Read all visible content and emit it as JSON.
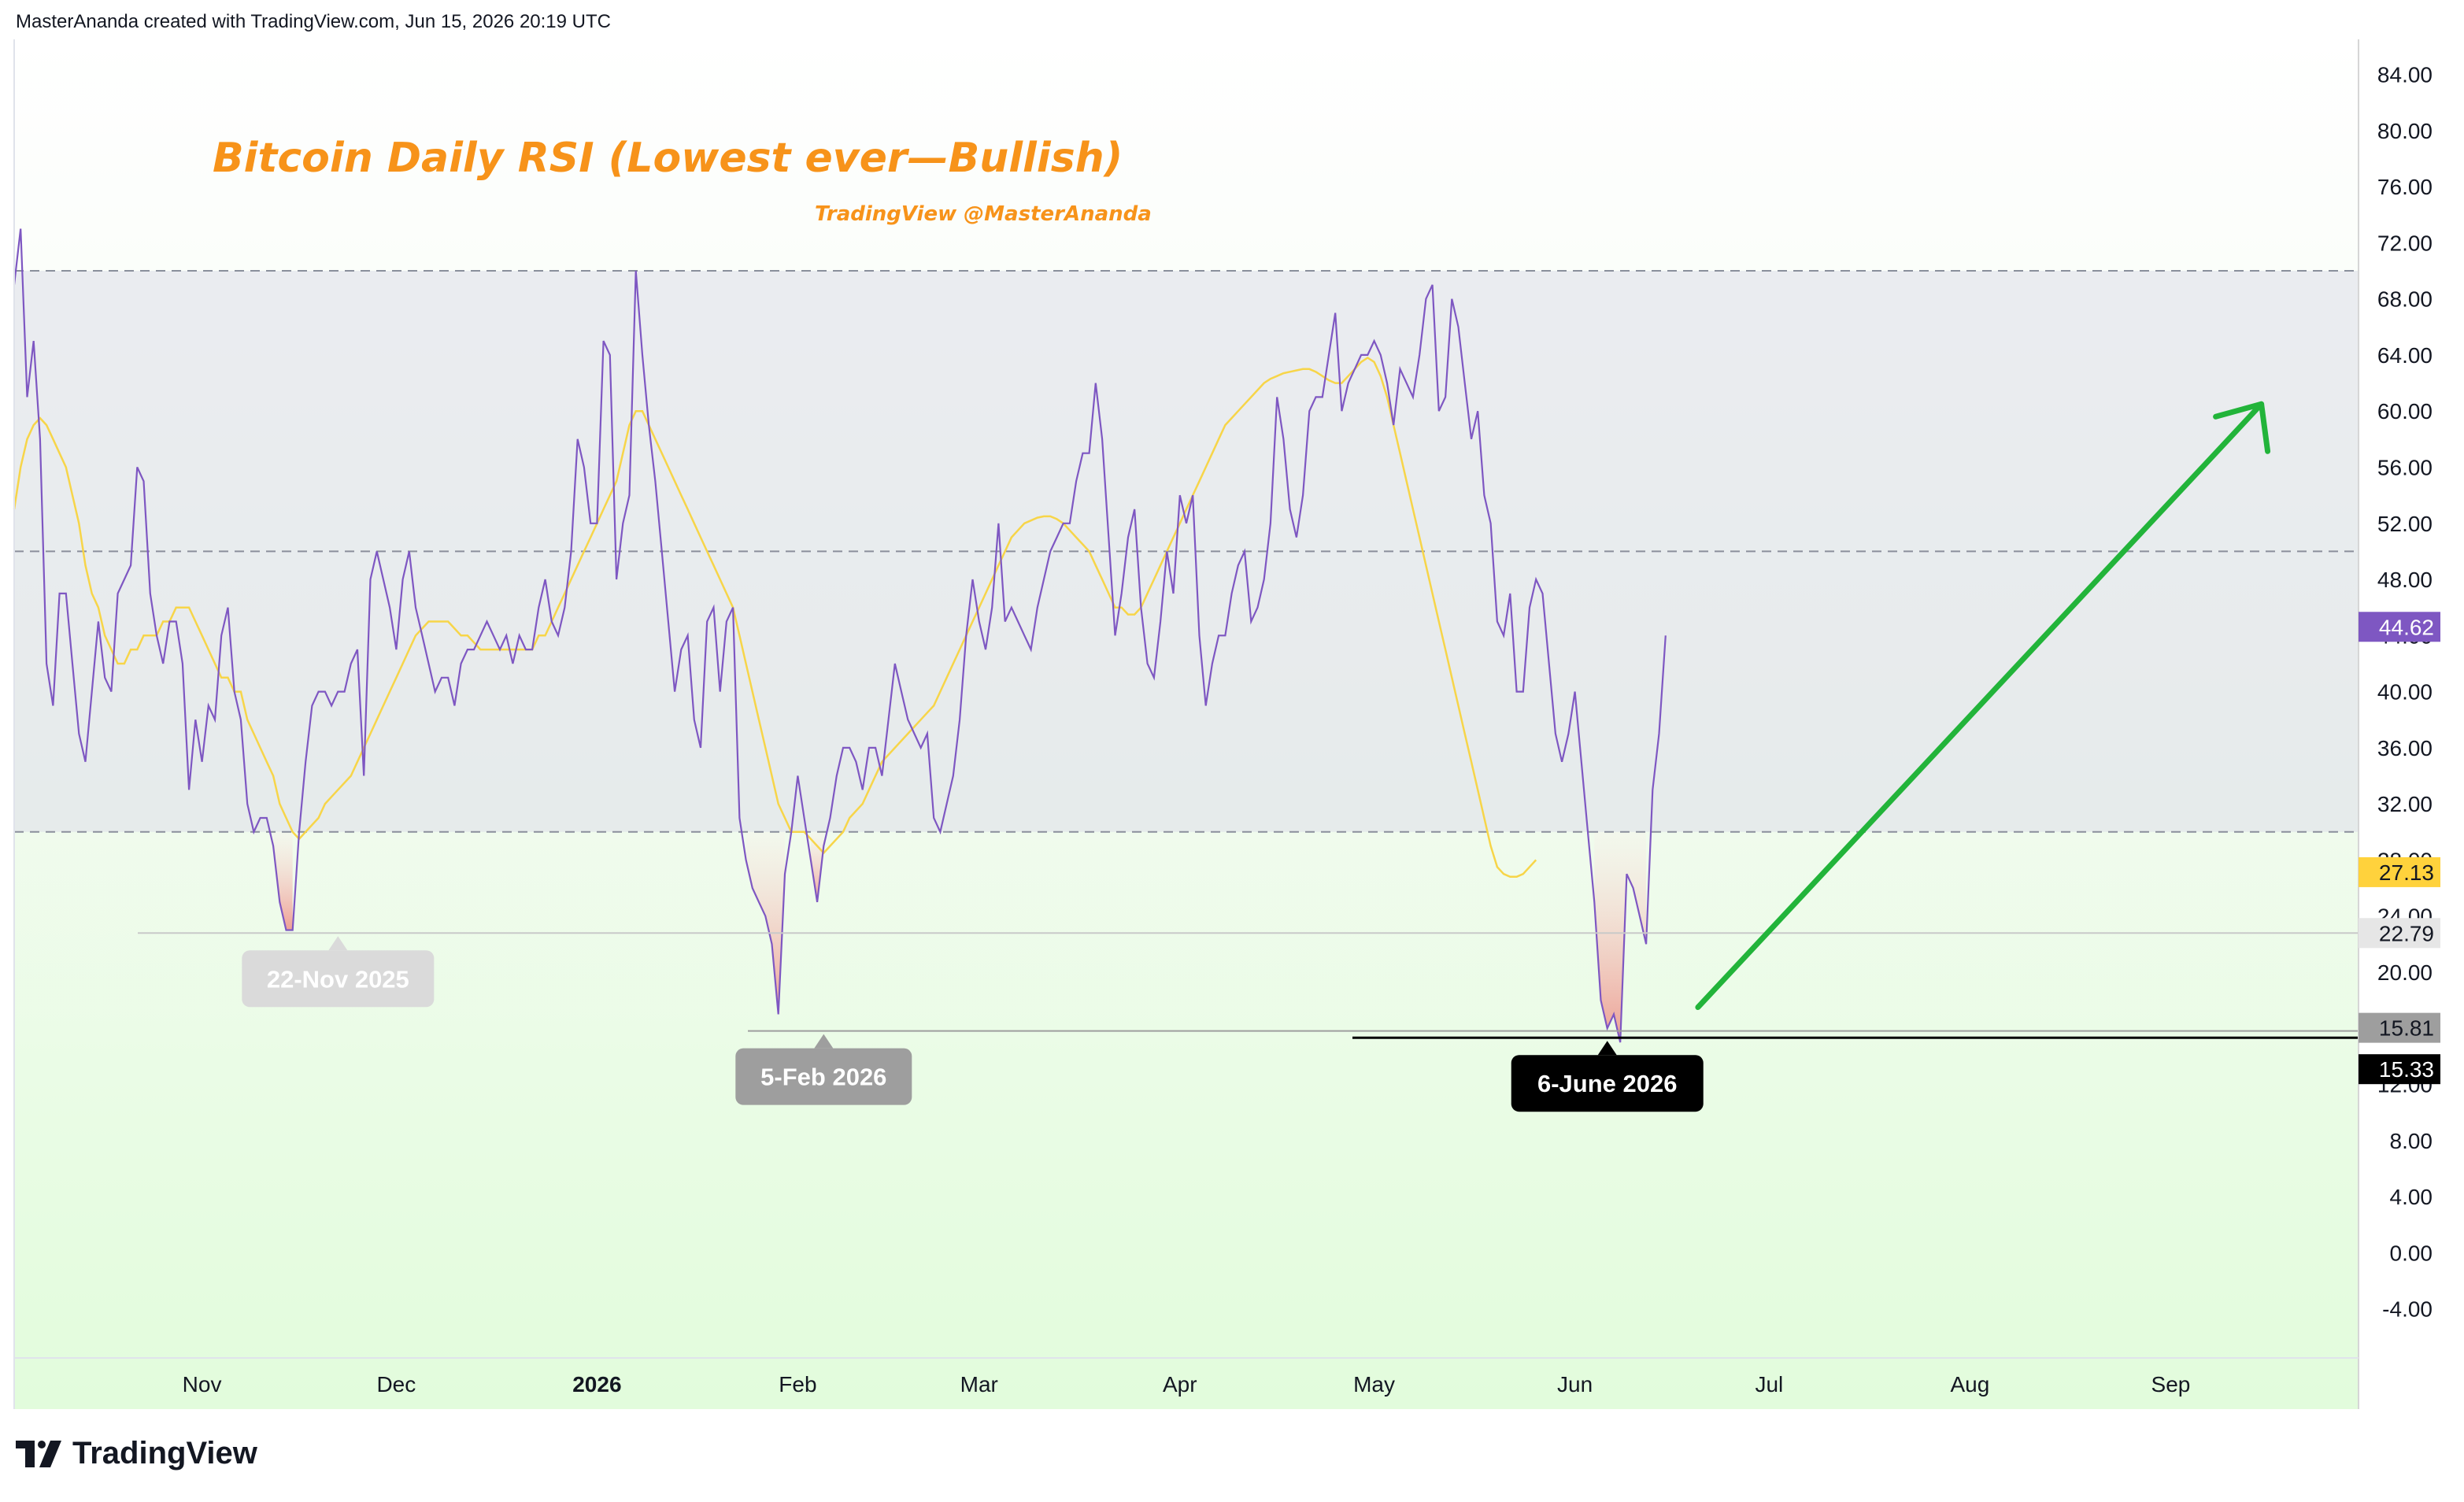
{
  "header": {
    "text": "MasterAnanda created with TradingView.com, Jun 15, 2026 20:19 UTC"
  },
  "brand": {
    "name": "TradingView"
  },
  "colors": {
    "rsi": "#7e57c2",
    "rsi_ma": "#f7d549",
    "title": "#f7931a",
    "arrow": "#22b43a",
    "band": "#dfe1ea",
    "green_zone": "#e3ffde",
    "label_nov": "#dadada",
    "label_feb": "#9e9e9e",
    "label_jun": "#000000",
    "price_current": "#7e57c2",
    "price_ma": "#ffd23c"
  },
  "chart_data": {
    "type": "line",
    "title": "Bitcoin Daily RSI (Lowest ever—Bullish)",
    "subtitle": "TradingView @MasterAnanda",
    "ylim": [
      -7.5,
      86.5
    ],
    "y_ticks": [
      "84.00",
      "80.00",
      "76.00",
      "72.00",
      "68.00",
      "64.00",
      "60.00",
      "56.00",
      "52.00",
      "48.00",
      "44.00",
      "40.00",
      "36.00",
      "32.00",
      "28.00",
      "24.00",
      "20.00",
      "16.00",
      "12.00",
      "8.00",
      "4.00",
      "0.00",
      "-4.00"
    ],
    "x_ticks": [
      {
        "label": "Nov",
        "bold": false
      },
      {
        "label": "Dec",
        "bold": false
      },
      {
        "label": "2026",
        "bold": true
      },
      {
        "label": "Feb",
        "bold": false
      },
      {
        "label": "Mar",
        "bold": false
      },
      {
        "label": "Apr",
        "bold": false
      },
      {
        "label": "May",
        "bold": false
      },
      {
        "label": "Jun",
        "bold": false
      },
      {
        "label": "Jul",
        "bold": false
      },
      {
        "label": "Aug",
        "bold": false
      },
      {
        "label": "Sep",
        "bold": false
      }
    ],
    "band": {
      "upper": 70,
      "middle": 50,
      "lower": 30
    },
    "series": [
      {
        "role": "rsi",
        "start_date": "2025-10-03",
        "values": [
          69,
          73,
          61,
          65,
          58,
          42,
          39,
          47,
          47,
          42,
          37,
          35,
          40,
          45,
          41,
          40,
          47,
          48,
          49,
          56,
          55,
          47,
          44,
          42,
          45,
          45,
          42,
          33,
          38,
          35,
          39,
          38,
          44,
          46,
          40,
          38,
          32,
          30,
          31,
          31,
          29,
          25,
          23,
          23,
          30,
          35,
          39,
          40,
          40,
          39,
          40,
          40,
          42,
          43,
          34,
          48,
          50,
          48,
          46,
          43,
          48,
          50,
          46,
          44,
          42,
          40,
          41,
          41,
          39,
          42,
          43,
          43,
          44,
          45,
          44,
          43,
          44,
          42,
          44,
          43,
          43,
          46,
          48,
          45,
          44,
          46,
          50,
          58,
          56,
          52,
          52,
          65,
          64,
          48,
          52,
          54,
          70,
          64,
          59,
          55,
          50,
          45,
          40,
          43,
          44,
          38,
          36,
          45,
          46,
          40,
          45,
          46,
          31,
          28,
          26,
          25,
          24,
          22,
          17,
          27,
          30,
          34,
          31,
          28,
          25,
          29,
          31,
          34,
          36,
          36,
          35,
          33,
          36,
          36,
          34,
          38,
          42,
          40,
          38,
          37,
          36,
          37,
          31,
          30,
          32,
          34,
          38,
          44,
          48,
          45,
          43,
          46,
          52,
          45,
          46,
          45,
          44,
          43,
          46,
          48,
          50,
          51,
          52,
          52,
          55,
          57,
          57,
          62,
          58,
          51,
          44,
          47,
          51,
          53,
          46,
          42,
          41,
          45,
          50,
          47,
          54,
          52,
          54,
          44,
          39,
          42,
          44,
          44,
          47,
          49,
          50,
          45,
          46,
          48,
          52,
          61,
          58,
          53,
          51,
          54,
          60,
          61,
          61,
          64,
          67,
          60,
          62,
          63,
          64,
          64,
          65,
          64,
          62,
          59,
          63,
          62,
          61,
          64,
          68,
          69,
          60,
          61,
          68,
          66,
          62,
          58,
          60,
          54,
          52,
          45,
          44,
          47,
          40,
          40,
          46,
          48,
          47,
          42,
          37,
          35,
          37,
          40,
          35,
          30,
          25,
          18,
          16,
          17,
          15,
          27,
          26,
          24,
          22,
          33,
          37,
          44
        ]
      },
      {
        "role": "rsi_ma",
        "start_date": "2025-10-03",
        "values": [
          53,
          56,
          58,
          59,
          59.5,
          59,
          58,
          57,
          56,
          54,
          52,
          49,
          47,
          46,
          44,
          43,
          42,
          42,
          43,
          43,
          44,
          44,
          44,
          45,
          45,
          46,
          46,
          46,
          45,
          44,
          43,
          42,
          41,
          41,
          40,
          40,
          38,
          37,
          36,
          35,
          34,
          32,
          31,
          30,
          29.5,
          30,
          30.5,
          31,
          32,
          32.5,
          33,
          33.5,
          34,
          35,
          36,
          37,
          38,
          39,
          40,
          41,
          42,
          43,
          44,
          44.5,
          45,
          45,
          45,
          45,
          44.5,
          44,
          44,
          43.5,
          43,
          43,
          43,
          43,
          43,
          43,
          43,
          43,
          43,
          44,
          44,
          45,
          46,
          47,
          48,
          49,
          50,
          51,
          52,
          53,
          54,
          55,
          57,
          59,
          60,
          60,
          59,
          58,
          57,
          56,
          55,
          54,
          53,
          52,
          51,
          50,
          49,
          48,
          47,
          46,
          44,
          42,
          40,
          38,
          36,
          34,
          32,
          31,
          30,
          30,
          30,
          29.5,
          29,
          28.5,
          29,
          29.5,
          30,
          31,
          31.5,
          32,
          33,
          34,
          35,
          35.5,
          36,
          36.5,
          37,
          37.5,
          38,
          38.5,
          39,
          40,
          41,
          42,
          43,
          44,
          45,
          46,
          47,
          48,
          49,
          50,
          51,
          51.5,
          52,
          52.2,
          52.4,
          52.5,
          52.5,
          52.3,
          52,
          51.5,
          51,
          50.5,
          50,
          49,
          48,
          47,
          46,
          46,
          45.5,
          45.5,
          46,
          47,
          48,
          49,
          50,
          51,
          52,
          53,
          54,
          55,
          56,
          57,
          58,
          59,
          59.5,
          60,
          60.5,
          61,
          61.5,
          62,
          62.3,
          62.5,
          62.7,
          62.8,
          62.9,
          63,
          63,
          62.8,
          62.5,
          62.2,
          62,
          62,
          62.5,
          63,
          63.5,
          63.8,
          63.5,
          62.5,
          61,
          59,
          57,
          55,
          53,
          51,
          49,
          47,
          45,
          43,
          41,
          39,
          37,
          35,
          33,
          31,
          29,
          27.5,
          27,
          26.8,
          26.8,
          27,
          27.5,
          28
        ]
      }
    ],
    "annotations": [
      {
        "label": "22-Nov 2025",
        "date": "2025-11-22",
        "value": 22.79
      },
      {
        "label": "5-Feb 2026",
        "date": "2026-02-05",
        "value": 15.81
      },
      {
        "label": "6-June 2026",
        "date": "2026-06-06",
        "value": 15.33
      }
    ],
    "arrow": {
      "from": {
        "date": "2026-06-20",
        "value": 17.5
      },
      "to": {
        "date": "2026-09-15",
        "value": 60.5
      }
    },
    "price_labels": [
      {
        "text": "44.62",
        "value": 44.62,
        "kind": "current"
      },
      {
        "text": "27.13",
        "value": 27.13,
        "kind": "ma"
      },
      {
        "text": "22.79",
        "value": 22.79,
        "kind": "nov"
      },
      {
        "text": "15.81",
        "value": 15.81,
        "kind": "feb"
      },
      {
        "text": "15.33",
        "value": 15.33,
        "kind": "jun"
      }
    ]
  }
}
